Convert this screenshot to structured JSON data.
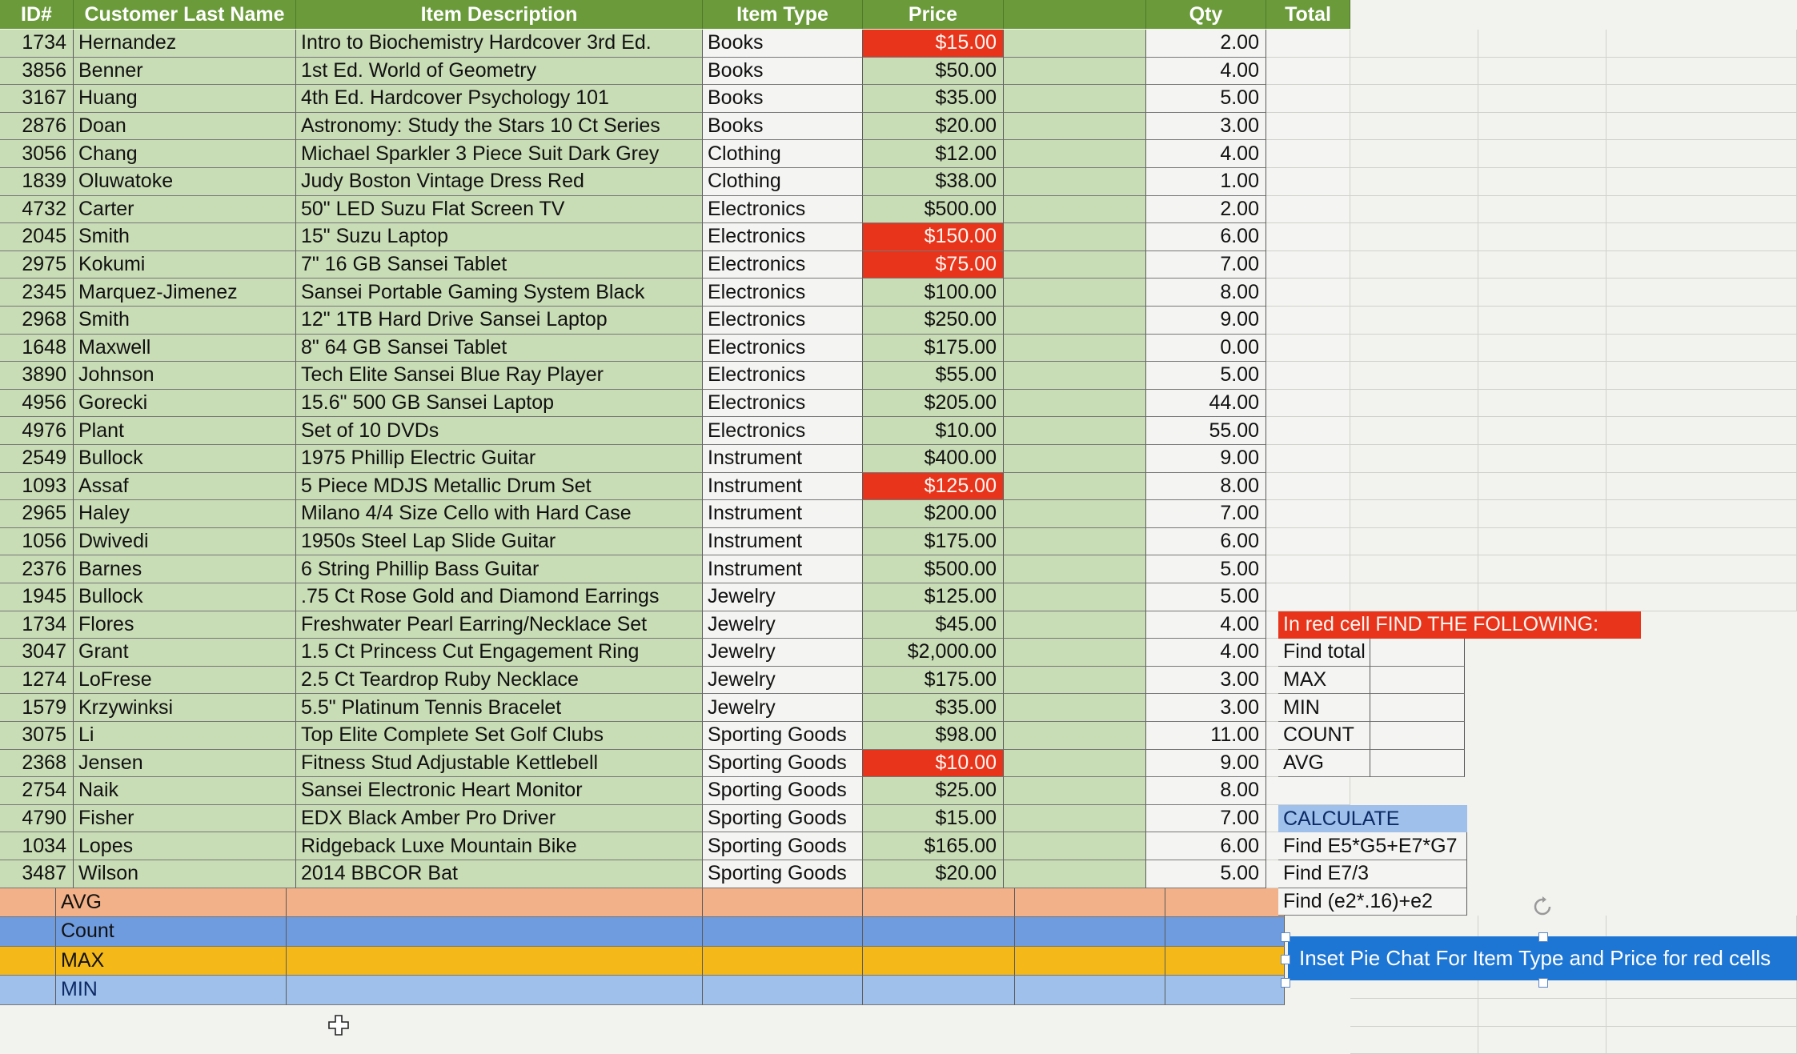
{
  "headers": {
    "id": "ID#",
    "last_name": "Customer Last Name",
    "description": "Item Description",
    "item_type": "Item Type",
    "price": "Price",
    "qty": "Qty",
    "total": "Total"
  },
  "rows": [
    {
      "id": "1734",
      "last": "Hernandez",
      "desc": "Intro to Biochemistry Hardcover 3rd Ed.",
      "type": "Books",
      "price": "$15.00",
      "qty": "2.00",
      "price_red": true
    },
    {
      "id": "3856",
      "last": "Benner",
      "desc": "1st Ed. World of Geometry",
      "type": "Books",
      "price": "$50.00",
      "qty": "4.00",
      "price_red": false
    },
    {
      "id": "3167",
      "last": "Huang",
      "desc": "4th Ed. Hardcover Psychology 101",
      "type": "Books",
      "price": "$35.00",
      "qty": "5.00",
      "price_red": false
    },
    {
      "id": "2876",
      "last": "Doan",
      "desc": "Astronomy: Study the Stars 10 Ct Series",
      "type": "Books",
      "price": "$20.00",
      "qty": "3.00",
      "price_red": false
    },
    {
      "id": "3056",
      "last": "Chang",
      "desc": "Michael Sparkler 3 Piece Suit Dark Grey",
      "type": "Clothing",
      "price": "$12.00",
      "qty": "4.00",
      "price_red": false
    },
    {
      "id": "1839",
      "last": "Oluwatoke",
      "desc": "Judy Boston Vintage Dress Red",
      "type": "Clothing",
      "price": "$38.00",
      "qty": "1.00",
      "price_red": false
    },
    {
      "id": "4732",
      "last": "Carter",
      "desc": "50\" LED Suzu Flat Screen TV",
      "type": "Electronics",
      "price": "$500.00",
      "qty": "2.00",
      "price_red": false
    },
    {
      "id": "2045",
      "last": "Smith",
      "desc": "15\" Suzu Laptop",
      "type": "Electronics",
      "price": "$150.00",
      "qty": "6.00",
      "price_red": true
    },
    {
      "id": "2975",
      "last": "Kokumi",
      "desc": "7\" 16 GB Sansei Tablet",
      "type": "Electronics",
      "price": "$75.00",
      "qty": "7.00",
      "price_red": true
    },
    {
      "id": "2345",
      "last": "Marquez-Jimenez",
      "desc": "Sansei Portable Gaming System Black",
      "type": "Electronics",
      "price": "$100.00",
      "qty": "8.00",
      "price_red": false
    },
    {
      "id": "2968",
      "last": "Smith",
      "desc": "12\" 1TB Hard Drive Sansei Laptop",
      "type": "Electronics",
      "price": "$250.00",
      "qty": "9.00",
      "price_red": false
    },
    {
      "id": "1648",
      "last": "Maxwell",
      "desc": "8\" 64 GB Sansei Tablet",
      "type": "Electronics",
      "price": "$175.00",
      "qty": "0.00",
      "price_red": false
    },
    {
      "id": "3890",
      "last": "Johnson",
      "desc": "Tech Elite Sansei Blue Ray Player",
      "type": "Electronics",
      "price": "$55.00",
      "qty": "5.00",
      "price_red": false
    },
    {
      "id": "4956",
      "last": "Gorecki",
      "desc": "15.6\" 500 GB Sansei Laptop",
      "type": "Electronics",
      "price": "$205.00",
      "qty": "44.00",
      "price_red": false
    },
    {
      "id": "4976",
      "last": "Plant",
      "desc": "Set of 10 DVDs",
      "type": "Electronics",
      "price": "$10.00",
      "qty": "55.00",
      "price_red": false
    },
    {
      "id": "2549",
      "last": "Bullock",
      "desc": "1975 Phillip Electric Guitar",
      "type": "Instrument",
      "price": "$400.00",
      "qty": "9.00",
      "price_red": false
    },
    {
      "id": "1093",
      "last": "Assaf",
      "desc": "5 Piece MDJS Metallic Drum Set",
      "type": "Instrument",
      "price": "$125.00",
      "qty": "8.00",
      "price_red": true
    },
    {
      "id": "2965",
      "last": "Haley",
      "desc": "Milano 4/4 Size Cello with Hard Case",
      "type": "Instrument",
      "price": "$200.00",
      "qty": "7.00",
      "price_red": false
    },
    {
      "id": "1056",
      "last": "Dwivedi",
      "desc": "1950s Steel Lap Slide Guitar",
      "type": "Instrument",
      "price": "$175.00",
      "qty": "6.00",
      "price_red": false
    },
    {
      "id": "2376",
      "last": "Barnes",
      "desc": "6 String Phillip Bass Guitar",
      "type": "Instrument",
      "price": "$500.00",
      "qty": "5.00",
      "price_red": false
    },
    {
      "id": "1945",
      "last": "Bullock",
      "desc": ".75 Ct Rose Gold and Diamond Earrings",
      "type": "Jewelry",
      "price": "$125.00",
      "qty": "5.00",
      "price_red": false
    },
    {
      "id": "1734",
      "last": "Flores",
      "desc": "Freshwater Pearl Earring/Necklace Set",
      "type": "Jewelry",
      "price": "$45.00",
      "qty": "4.00",
      "price_red": false
    },
    {
      "id": "3047",
      "last": "Grant",
      "desc": "1.5 Ct Princess Cut Engagement Ring",
      "type": "Jewelry",
      "price": "$2,000.00",
      "qty": "4.00",
      "price_red": false
    },
    {
      "id": "1274",
      "last": "LoFrese",
      "desc": "2.5 Ct Teardrop Ruby Necklace",
      "type": "Jewelry",
      "price": "$175.00",
      "qty": "3.00",
      "price_red": false
    },
    {
      "id": "1579",
      "last": "Krzywinksi",
      "desc": "5.5\" Platinum Tennis Bracelet",
      "type": "Jewelry",
      "price": "$35.00",
      "qty": "3.00",
      "price_red": false
    },
    {
      "id": "3075",
      "last": "Li",
      "desc": "Top Elite Complete Set Golf Clubs",
      "type": "Sporting Goods",
      "price": "$98.00",
      "qty": "11.00",
      "price_red": false
    },
    {
      "id": "2368",
      "last": "Jensen",
      "desc": "Fitness Stud Adjustable Kettlebell",
      "type": "Sporting Goods",
      "price": "$10.00",
      "qty": "9.00",
      "price_red": true
    },
    {
      "id": "2754",
      "last": "Naik",
      "desc": "Sansei Electronic Heart Monitor",
      "type": "Sporting Goods",
      "price": "$25.00",
      "qty": "8.00",
      "price_red": false
    },
    {
      "id": "4790",
      "last": "Fisher",
      "desc": "EDX Black Amber Pro Driver",
      "type": "Sporting Goods",
      "price": "$15.00",
      "qty": "7.00",
      "price_red": false
    },
    {
      "id": "1034",
      "last": "Lopes",
      "desc": "Ridgeback Luxe Mountain Bike",
      "type": "Sporting Goods",
      "price": "$165.00",
      "qty": "6.00",
      "price_red": false
    },
    {
      "id": "3487",
      "last": "Wilson",
      "desc": "2014 BBCOR Bat",
      "type": "Sporting Goods",
      "price": "$20.00",
      "qty": "5.00",
      "price_red": false
    }
  ],
  "summary_rows": [
    "AVG",
    "Count",
    "MAX",
    "MIN"
  ],
  "side_panel": {
    "red_header": "In red cell FIND THE FOLLOWING:",
    "find_items": [
      "Find total",
      "MAX",
      "MIN",
      "COUNT",
      "AVG"
    ],
    "calculate": "CALCULATE",
    "calc_items": [
      "Find E5*G5+E7*G7",
      "Find E7/3",
      "Find (e2*.16)+e2"
    ]
  },
  "banner_text": "Inset Pie Chat For Item Type and Price for red cells",
  "colors": {
    "header_green": "#6a9a3a",
    "cell_green": "#c8dcb5",
    "highlight_red": "#e8341b",
    "avg_orange": "#f2b188",
    "count_blue": "#6f9bdf",
    "max_yellow": "#f4b918",
    "banner_blue": "#1e76d4"
  }
}
